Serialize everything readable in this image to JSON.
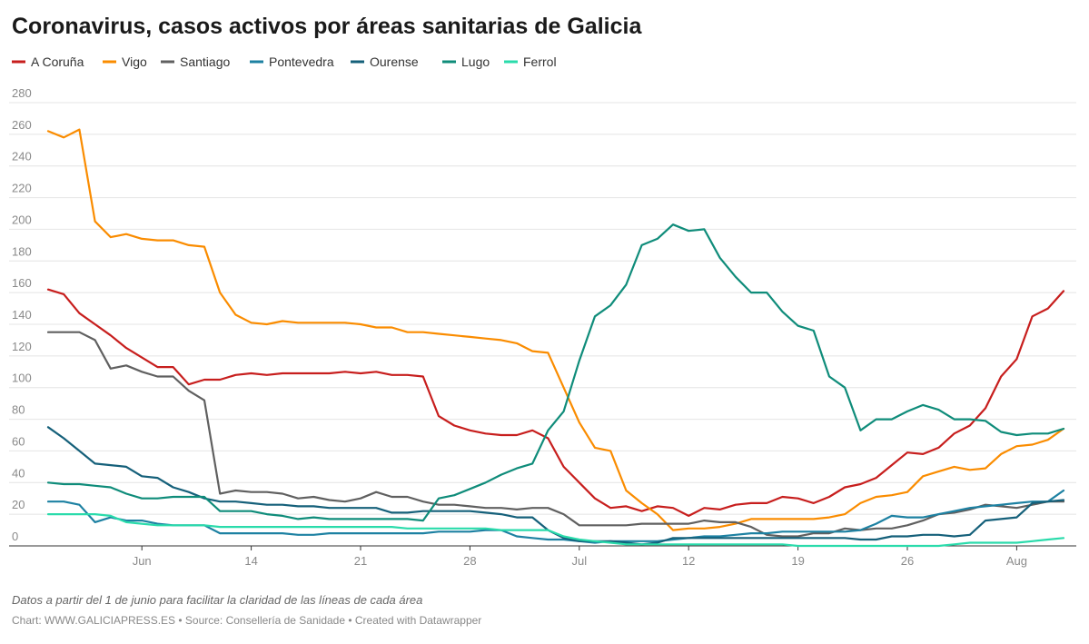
{
  "chart_data": {
    "type": "line",
    "title": "Coronavirus, casos activos por áreas sanitarias de Galicia",
    "note": "Datos a partir del 1 de junio para facilitar la claridad de las líneas de cada área",
    "footer": "Chart: WWW.GALICIAPRESS.ES • Source: Consellería de Sanidade • Created with Datawrapper",
    "x": [
      "06-01",
      "06-02",
      "06-03",
      "06-04",
      "06-05",
      "06-06",
      "06-07",
      "06-08",
      "06-09",
      "06-10",
      "06-11",
      "06-12",
      "06-13",
      "06-14",
      "06-15",
      "06-16",
      "06-17",
      "06-18",
      "06-19",
      "06-20",
      "06-21",
      "06-22",
      "06-23",
      "06-24",
      "06-25",
      "06-26",
      "06-27",
      "06-28",
      "06-29",
      "06-30",
      "07-01",
      "07-02",
      "07-03",
      "07-04",
      "07-05",
      "07-06",
      "07-07",
      "07-08",
      "07-09",
      "07-10",
      "07-11",
      "07-12",
      "07-13",
      "07-14",
      "07-15",
      "07-16",
      "07-17",
      "07-18",
      "07-19",
      "07-20",
      "07-21",
      "07-22",
      "07-23",
      "07-24",
      "07-25",
      "07-26",
      "07-27",
      "07-28",
      "07-29",
      "07-30",
      "07-31",
      "08-01",
      "08-02",
      "08-03",
      "08-04",
      "08-05"
    ],
    "xlim": [
      "06-01",
      "08-05"
    ],
    "xticks": [
      {
        "value": "06-07",
        "label": "Jun"
      },
      {
        "value": "06-14",
        "label": "14"
      },
      {
        "value": "06-21",
        "label": "21"
      },
      {
        "value": "06-28",
        "label": "28"
      },
      {
        "value": "07-05",
        "label": "Jul"
      },
      {
        "value": "07-12",
        "label": "12"
      },
      {
        "value": "07-19",
        "label": "19"
      },
      {
        "value": "07-26",
        "label": "26"
      },
      {
        "value": "08-02",
        "label": "Aug"
      }
    ],
    "ylim": [
      0,
      280
    ],
    "yticks": [
      0,
      20,
      40,
      60,
      80,
      100,
      120,
      140,
      160,
      180,
      200,
      220,
      240,
      260,
      280
    ],
    "grid": true,
    "series": [
      {
        "name": "A Coruña",
        "color": "#c71e1d",
        "values": [
          162,
          159,
          147,
          140,
          133,
          125,
          119,
          113,
          113,
          102,
          105,
          105,
          108,
          109,
          108,
          109,
          109,
          109,
          109,
          110,
          109,
          110,
          108,
          108,
          107,
          82,
          76,
          73,
          71,
          70,
          70,
          73,
          68,
          50,
          40,
          30,
          24,
          25,
          22,
          25,
          24,
          19,
          24,
          23,
          26,
          27,
          27,
          31,
          30,
          27,
          31,
          37,
          39,
          43,
          51,
          59,
          58,
          62,
          71,
          76,
          87,
          107,
          118,
          145,
          150,
          161
        ]
      },
      {
        "name": "Vigo",
        "color": "#fa8c00",
        "values": [
          262,
          258,
          263,
          205,
          195,
          197,
          194,
          193,
          193,
          190,
          189,
          160,
          146,
          141,
          140,
          142,
          141,
          141,
          141,
          141,
          140,
          138,
          138,
          135,
          135,
          134,
          133,
          132,
          131,
          130,
          128,
          123,
          122,
          100,
          78,
          62,
          60,
          35,
          27,
          20,
          10,
          11,
          11,
          12,
          14,
          17,
          17,
          17,
          17,
          17,
          18,
          20,
          27,
          31,
          32,
          34,
          44,
          47,
          50,
          48,
          49,
          58,
          63,
          64,
          67,
          74
        ]
      },
      {
        "name": "Santiago",
        "color": "#606060",
        "values": [
          135,
          135,
          135,
          130,
          112,
          114,
          110,
          107,
          107,
          98,
          92,
          33,
          35,
          34,
          34,
          33,
          30,
          31,
          29,
          28,
          30,
          34,
          31,
          31,
          28,
          26,
          26,
          25,
          24,
          24,
          23,
          24,
          24,
          20,
          13,
          13,
          13,
          13,
          14,
          14,
          14,
          14,
          16,
          15,
          15,
          12,
          7,
          6,
          6,
          8,
          8,
          11,
          10,
          11,
          11,
          13,
          16,
          20,
          21,
          23,
          26,
          25,
          24,
          26,
          28,
          28
        ]
      },
      {
        "name": "Pontevedra",
        "color": "#1d81a2",
        "values": [
          28,
          28,
          26,
          15,
          18,
          16,
          16,
          14,
          13,
          13,
          13,
          8,
          8,
          8,
          8,
          8,
          7,
          7,
          8,
          8,
          8,
          8,
          8,
          8,
          8,
          9,
          9,
          9,
          10,
          10,
          6,
          5,
          4,
          4,
          3,
          2,
          3,
          3,
          3,
          3,
          4,
          5,
          6,
          6,
          7,
          8,
          8,
          9,
          9,
          9,
          9,
          9,
          10,
          14,
          19,
          18,
          18,
          20,
          22,
          24,
          25,
          26,
          27,
          28,
          28,
          35
        ]
      },
      {
        "name": "Ourense",
        "color": "#15607a",
        "values": [
          75,
          68,
          60,
          52,
          51,
          50,
          44,
          43,
          37,
          34,
          30,
          28,
          28,
          27,
          26,
          26,
          25,
          25,
          24,
          24,
          24,
          24,
          21,
          21,
          22,
          22,
          22,
          22,
          21,
          20,
          18,
          18,
          10,
          5,
          3,
          3,
          3,
          2,
          1,
          2,
          5,
          5,
          5,
          5,
          5,
          5,
          5,
          5,
          5,
          5,
          5,
          5,
          4,
          4,
          6,
          6,
          7,
          7,
          6,
          7,
          16,
          17,
          18,
          27,
          28,
          29
        ]
      },
      {
        "name": "Lugo",
        "color": "#0f8c7a",
        "values": [
          40,
          39,
          39,
          38,
          37,
          33,
          30,
          30,
          31,
          31,
          31,
          22,
          22,
          22,
          20,
          19,
          17,
          18,
          17,
          17,
          17,
          17,
          17,
          17,
          16,
          30,
          32,
          36,
          40,
          45,
          49,
          52,
          73,
          85,
          117,
          145,
          152,
          165,
          190,
          194,
          203,
          199,
          200,
          182,
          170,
          160,
          160,
          148,
          139,
          136,
          107,
          100,
          73,
          80,
          80,
          85,
          89,
          86,
          80,
          80,
          79,
          72,
          70,
          71,
          71,
          74
        ]
      },
      {
        "name": "Ferrol",
        "color": "#2adbab",
        "values": [
          20,
          20,
          20,
          20,
          19,
          15,
          14,
          13,
          13,
          13,
          13,
          12,
          12,
          12,
          12,
          12,
          12,
          12,
          12,
          12,
          12,
          12,
          12,
          11,
          11,
          11,
          11,
          11,
          11,
          10,
          10,
          10,
          10,
          6,
          4,
          3,
          2,
          1,
          1,
          1,
          1,
          1,
          1,
          1,
          1,
          1,
          1,
          1,
          0,
          0,
          0,
          0,
          0,
          0,
          0,
          0,
          0,
          0,
          1,
          2,
          2,
          2,
          2,
          3,
          4,
          5
        ]
      }
    ]
  }
}
